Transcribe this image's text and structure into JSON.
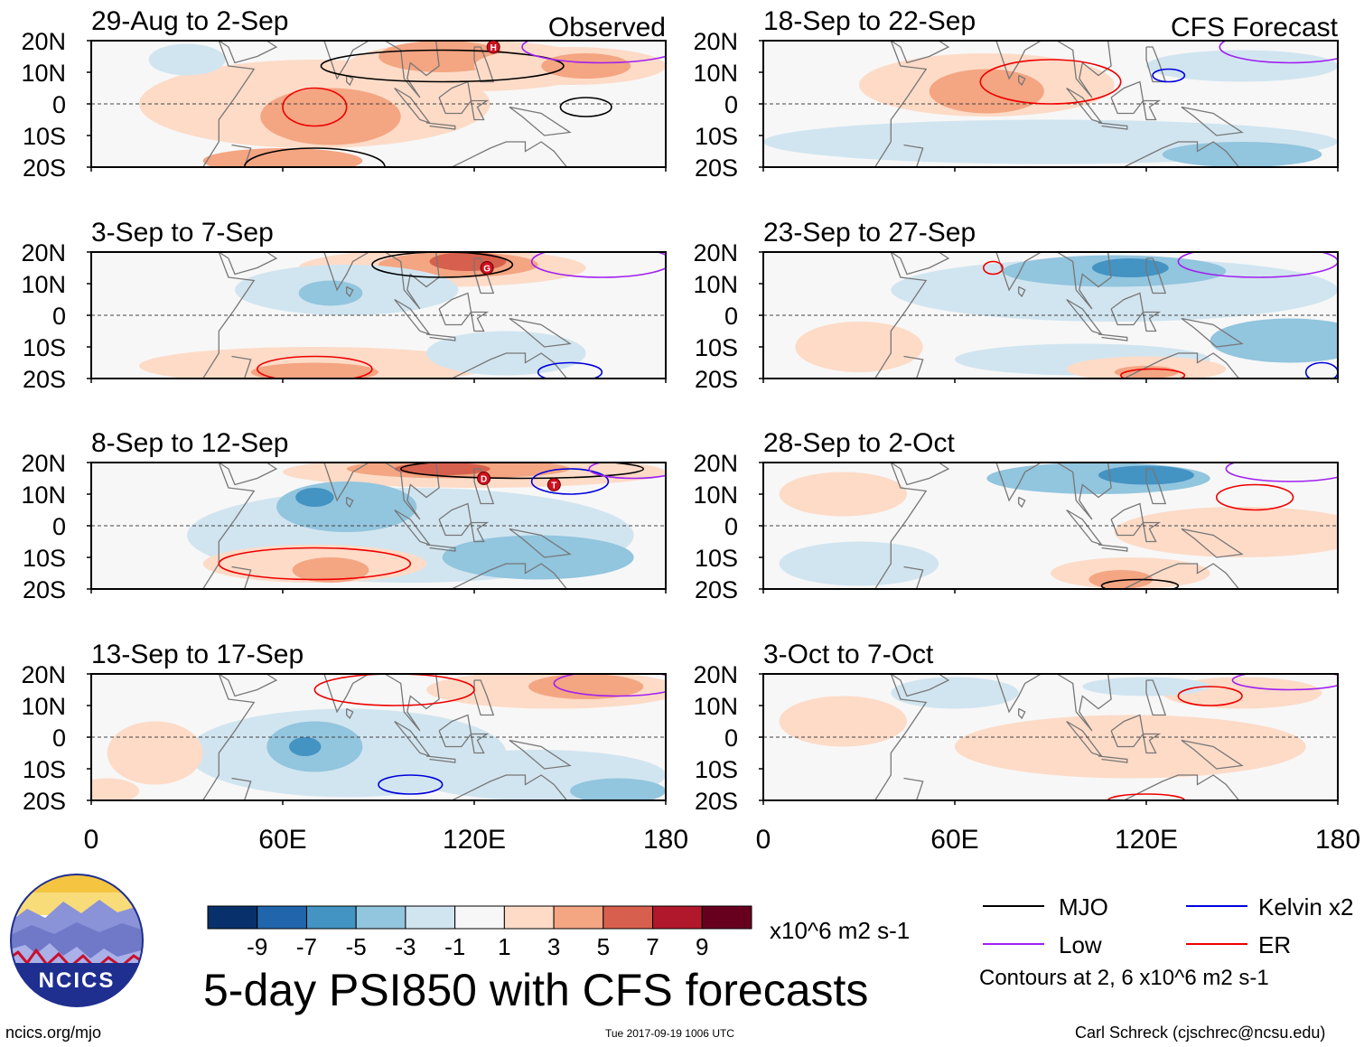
{
  "chart_data": {
    "type": "contour-map-panels",
    "title": "5-day PSI850 with CFS forecasts",
    "column_labels": {
      "observed": "Observed",
      "forecast": "CFS Forecast"
    },
    "x_axis": {
      "range": [
        0,
        180
      ],
      "ticks": [
        "0",
        "60E",
        "120E",
        "180"
      ]
    },
    "y_axis": {
      "range": [
        -20,
        20
      ],
      "ticks": [
        "20N",
        "10N",
        "0",
        "10S",
        "20S"
      ]
    },
    "panels": [
      {
        "period": "29-Aug to 2-Sep",
        "kind": "observed"
      },
      {
        "period": "3-Sep to 7-Sep",
        "kind": "observed"
      },
      {
        "period": "8-Sep to 12-Sep",
        "kind": "observed"
      },
      {
        "period": "13-Sep to 17-Sep",
        "kind": "observed"
      },
      {
        "period": "18-Sep to 22-Sep",
        "kind": "forecast"
      },
      {
        "period": "23-Sep to 27-Sep",
        "kind": "forecast"
      },
      {
        "period": "28-Sep to 2-Oct",
        "kind": "forecast"
      },
      {
        "period": "3-Oct to 7-Oct",
        "kind": "forecast"
      }
    ],
    "colorbar": {
      "levels": [
        "-9",
        "-7",
        "-5",
        "-3",
        "-1",
        "1",
        "3",
        "5",
        "7",
        "9"
      ],
      "colors": [
        "#08306b",
        "#2166ac",
        "#4393c3",
        "#92c5de",
        "#d1e5f0",
        "#f7f7f7",
        "#fddbc7",
        "#f4a582",
        "#d6604d",
        "#b2182b",
        "#67001f"
      ],
      "units": "x10^6 m2 s-1"
    },
    "legend": {
      "entries": [
        {
          "label": "MJO",
          "color": "#000000"
        },
        {
          "label": "Kelvin x2",
          "color": "#0000dd"
        },
        {
          "label": "Low",
          "color": "#a020f0"
        },
        {
          "label": "ER",
          "color": "#ee0000"
        }
      ],
      "note": "Contours at 2, 6 x10^6 m2 s-1"
    },
    "storm_markers": [
      {
        "panel": "29-Aug to 2-Sep",
        "label": "H"
      },
      {
        "panel": "3-Sep to 7-Sep",
        "label": "G"
      },
      {
        "panel": "8-Sep to 12-Sep",
        "label": "D"
      },
      {
        "panel": "8-Sep to 12-Sep",
        "label": "T"
      }
    ]
  },
  "logo": {
    "text": "NCICS"
  },
  "footer": {
    "url": "ncics.org/mjo",
    "timestamp": "Tue 2017-09-19 1006 UTC",
    "credit": "Carl Schreck (cjschrec@ncsu.edu)"
  }
}
